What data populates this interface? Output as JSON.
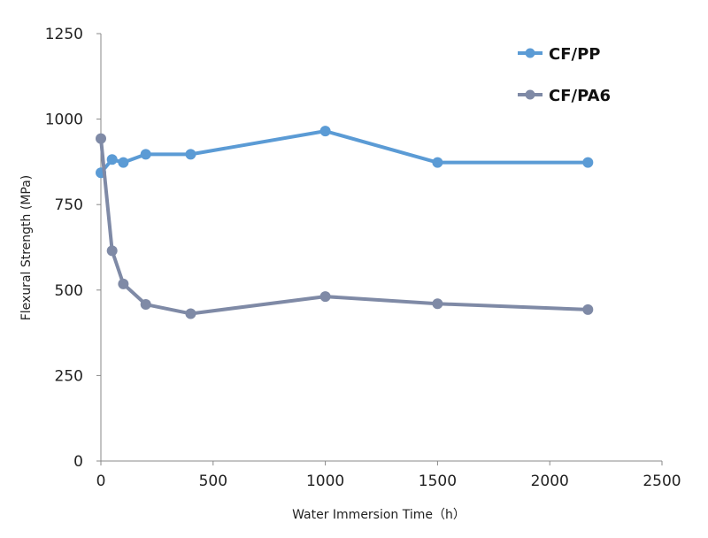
{
  "chart_data": {
    "type": "line",
    "title": "",
    "xlabel": "Water Immersion Time（h）",
    "ylabel": "Flexural Strength (MPa)",
    "xlim": [
      0,
      2500
    ],
    "ylim": [
      0,
      1250
    ],
    "xticks": [
      0,
      500,
      1000,
      1500,
      2000,
      2500
    ],
    "yticks": [
      0,
      250,
      500,
      750,
      1000,
      1250
    ],
    "grid": false,
    "legend_position": "top-right",
    "series": [
      {
        "name": "CF/PP",
        "color": "#5b9bd5",
        "x": [
          0,
          50,
          100,
          200,
          400,
          1000,
          1500,
          2170
        ],
        "y": [
          843,
          882,
          873,
          897,
          897,
          965,
          873,
          873
        ]
      },
      {
        "name": "CF/PA6",
        "color": "#7f8aa6",
        "x": [
          0,
          50,
          100,
          200,
          400,
          1000,
          1500,
          2170
        ],
        "y": [
          943,
          615,
          518,
          458,
          431,
          481,
          460,
          443
        ]
      }
    ]
  }
}
